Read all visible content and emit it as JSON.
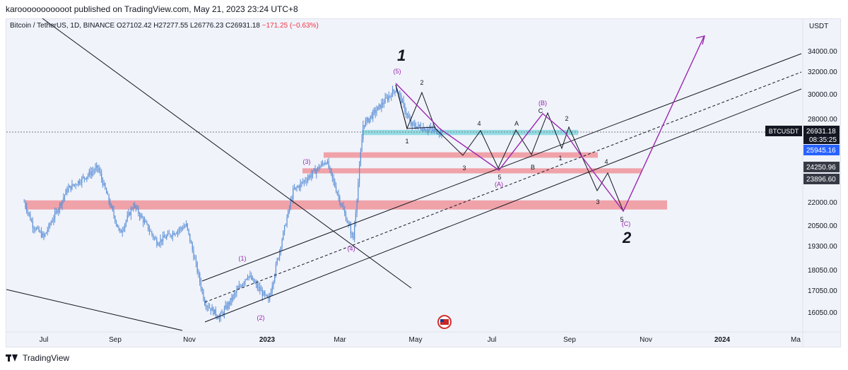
{
  "header": {
    "publish_line": "karooooooooooot published on TradingView.com, May 21, 2023 23:24 UTC+8"
  },
  "symbol": {
    "name": "Bitcoin / TetherUS, 1D, BINANCE",
    "open": "O27102.42",
    "high": "H27277.55",
    "low": "L26776.23",
    "close": "C26931.18",
    "change": "−171.25 (−0.63%)"
  },
  "price_axis": {
    "currency": "USDT",
    "ticks": [
      "34000.00",
      "32000.00",
      "30000.00",
      "28000.00",
      "22000.00",
      "20500.00",
      "19300.00",
      "18050.00",
      "17050.00",
      "16050.00"
    ],
    "badges": [
      {
        "label": "BTCUSDT",
        "value": "26931.18",
        "sub": "08:35:25",
        "color": "#131722"
      },
      {
        "label": "",
        "value": "25945.16",
        "color": "#2962ff"
      },
      {
        "label": "",
        "value": "24250.96",
        "color": "#363a45"
      },
      {
        "label": "",
        "value": "23896.60",
        "color": "#363a45"
      }
    ]
  },
  "time_axis": {
    "ticks": [
      "Jul",
      "Sep",
      "Nov",
      "2023",
      "Mar",
      "May",
      "Jul",
      "Sep",
      "Nov",
      "2024",
      "Ma"
    ]
  },
  "wave_labels": {
    "big_1": "1",
    "big_2": "2",
    "small": [
      "(1)",
      "(2)",
      "(3)",
      "(4)",
      "(5)",
      "(A)",
      "(B)",
      "(C)",
      "1",
      "2",
      "3",
      "4",
      "5",
      "A",
      "B",
      "C",
      "1",
      "2",
      "3",
      "4",
      "5"
    ]
  },
  "colors": {
    "candle": "#5b8fd6",
    "zone_red": "#f0939a",
    "zone_cyan": "#8ad9e0",
    "purple": "#9c27b0",
    "line": "#131722",
    "price_line": "#787b86"
  },
  "footer": {
    "brand": "TradingView"
  },
  "chart_data": {
    "type": "line",
    "title": "Bitcoin / TetherUS, 1D, BINANCE",
    "ylabel": "USDT",
    "ylim": [
      15500,
      36000
    ],
    "y_scale": "log",
    "x_ticks": [
      "Jul",
      "Sep",
      "Nov",
      "2023",
      "Mar",
      "May",
      "Jul",
      "Sep",
      "Nov",
      "2024",
      "Ma"
    ],
    "series": [
      {
        "values": [
          {
            "x": "2022-06-15",
            "y": 22000
          },
          {
            "x": "2022-06-22",
            "y": 20500
          },
          {
            "x": "2022-07-01",
            "y": 19800
          },
          {
            "x": "2022-07-20",
            "y": 22800
          },
          {
            "x": "2022-08-14",
            "y": 24300
          },
          {
            "x": "2022-09-01",
            "y": 20000
          },
          {
            "x": "2022-09-12",
            "y": 21800
          },
          {
            "x": "2022-10-01",
            "y": 19500
          },
          {
            "x": "2022-10-25",
            "y": 20500
          },
          {
            "x": "2022-11-09",
            "y": 16500
          },
          {
            "x": "2022-11-21",
            "y": 15800
          },
          {
            "x": "2022-12-14",
            "y": 17800
          },
          {
            "x": "2022-12-31",
            "y": 16550
          },
          {
            "x": "2023-01-20",
            "y": 22700
          },
          {
            "x": "2023-02-16",
            "y": 24800
          },
          {
            "x": "2023-03-10",
            "y": 19700
          },
          {
            "x": "2023-03-18",
            "y": 27500
          },
          {
            "x": "2023-04-14",
            "y": 30500
          },
          {
            "x": "2023-04-26",
            "y": 27500
          },
          {
            "x": "2023-05-21",
            "y": 26931
          }
        ]
      }
    ],
    "last_price": 26931.18,
    "zones": [
      {
        "color": "red",
        "from": 21500,
        "to": 22100
      },
      {
        "color": "red",
        "from": 23896.6,
        "to": 24250.96
      },
      {
        "color": "red",
        "from": 25000,
        "to": 25400
      },
      {
        "color": "cyan",
        "from": 26700,
        "to": 27100
      }
    ]
  }
}
